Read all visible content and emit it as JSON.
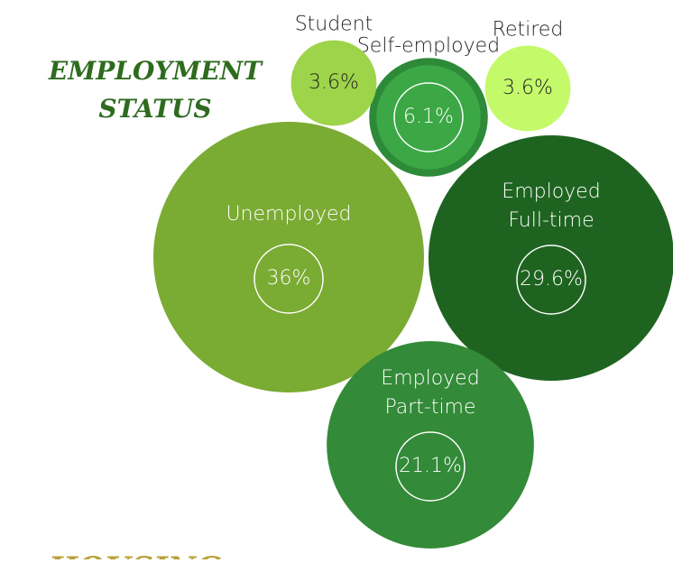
{
  "chart_data": {
    "type": "bubble",
    "title": "EMPLOYMENT STATUS",
    "categories": [
      "Unemployed",
      "Employed Full-time",
      "Employed Part-time",
      "Self-employed",
      "Student",
      "Retired"
    ],
    "values": [
      36,
      29.6,
      21.1,
      6.1,
      3.6,
      3.6
    ],
    "value_labels": [
      "36%",
      "29.6%",
      "21.1%",
      "6.1%",
      "3.6%",
      "3.6%"
    ],
    "colors": [
      "#7aab33",
      "#1e6420",
      "#338a38",
      "#3ba845",
      "#9ed44a",
      "#c4fa6a"
    ]
  },
  "next_heading": "HOUSING"
}
